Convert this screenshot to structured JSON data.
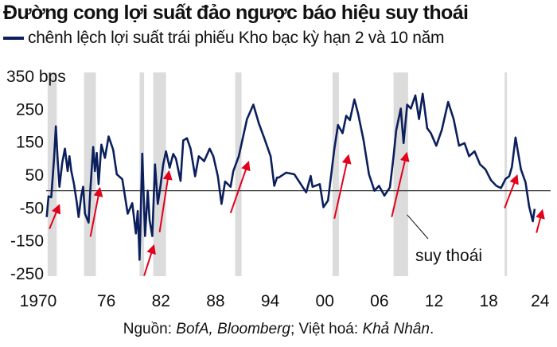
{
  "title": "Đường cong lợi suất đảo ngược báo hiệu suy thoái",
  "subtitle": "chênh lệch lợi suất trái phiếu Kho bạc kỳ hạn 2 và 10 năm",
  "source": {
    "prefix": "Nguồn: ",
    "sources_italic": "BofA, Bloomberg",
    "mid": "; Việt hoá: ",
    "translator_italic": "Khả Nhân",
    "suffix": "."
  },
  "colors": {
    "line": "#0b1f5c",
    "arrow": "#e3001b",
    "recession": "#dcdcdc",
    "zero_line": "#333333"
  },
  "chart_data": {
    "type": "line",
    "unit_label": "bps",
    "xlim": [
      1969.8,
      2024.5
    ],
    "ylim": [
      -260,
      360
    ],
    "x_ticks": [
      1970,
      1976,
      1982,
      1988,
      1994,
      2000,
      2006,
      2012,
      2018,
      2024
    ],
    "x_tick_labels": [
      "1970",
      "76",
      "82",
      "88",
      "94",
      "00",
      "06",
      "12",
      "18",
      "24"
    ],
    "y_ticks": [
      350,
      250,
      150,
      50,
      -50,
      -150,
      -250
    ],
    "y_tick_labels": [
      "350 bps",
      "250",
      "150",
      "50",
      "-50",
      "-150",
      "-250"
    ],
    "reference_line": 0,
    "grid": false,
    "series": [
      {
        "x": [
          1969.8,
          1970.0,
          1970.3,
          1970.6,
          1970.8,
          1971.0,
          1971.2,
          1971.5,
          1971.8,
          1972.1,
          1972.3,
          1972.5,
          1972.8,
          1973.1,
          1973.3,
          1973.6,
          1973.8,
          1974.0,
          1974.4,
          1974.6,
          1974.9,
          1975.1,
          1975.3,
          1975.5,
          1975.8,
          1976.2,
          1976.6,
          1977.1,
          1977.5,
          1978.1,
          1978.7,
          1979.2,
          1979.6,
          1979.8,
          1980.0,
          1980.3,
          1980.6,
          1980.9,
          1981.1,
          1981.4,
          1981.7,
          1982.0,
          1982.3,
          1982.6,
          1982.9,
          1983.3,
          1983.7,
          1984.0,
          1984.5,
          1984.8,
          1985.2,
          1985.6,
          1986.1,
          1986.5,
          1987.1,
          1987.7,
          1988.1,
          1988.6,
          1989.0,
          1989.4,
          1990.0,
          1990.3,
          1990.9,
          1991.8,
          1992.5,
          1993.1,
          1993.7,
          1994.4,
          1994.8,
          1995.1,
          1995.3,
          1996.1,
          1997.0,
          1997.9,
          1998.3,
          1998.8,
          1999.0,
          1999.8,
          2000.2,
          2000.7,
          2001.1,
          2001.4,
          2001.8,
          2002.3,
          2002.7,
          2003.1,
          2003.6,
          2004.0,
          2004.6,
          2005.2,
          2005.8,
          2006.3,
          2006.9,
          2007.5,
          2007.9,
          2008.2,
          2008.7,
          2009.0,
          2009.4,
          2009.8,
          2010.3,
          2010.7,
          2011.1,
          2011.6,
          2012.0,
          2012.6,
          2013.2,
          2013.9,
          2014.5,
          2015.1,
          2015.7,
          2016.2,
          2016.8,
          2017.4,
          2018.0,
          2018.6,
          2019.2,
          2019.7,
          2020.2,
          2020.6,
          2020.9,
          2021.3,
          2021.6,
          2021.9,
          2022.4,
          2022.8,
          2023.2,
          2023.4
        ],
        "y": [
          -80,
          -17,
          -20,
          97,
          196,
          97,
          12,
          85,
          128,
          60,
          105,
          60,
          20,
          -36,
          -80,
          -15,
          12,
          -70,
          -97,
          5,
          133,
          60,
          115,
          20,
          140,
          100,
          165,
          125,
          50,
          35,
          -70,
          -38,
          -130,
          -62,
          -210,
          113,
          -138,
          0,
          -90,
          -138,
          80,
          -40,
          15,
          80,
          120,
          70,
          112,
          97,
          30,
          153,
          160,
          128,
          44,
          105,
          90,
          128,
          105,
          44,
          -40,
          28,
          12,
          60,
          105,
          218,
          262,
          205,
          160,
          105,
          15,
          40,
          40,
          55,
          50,
          12,
          -5,
          45,
          12,
          20,
          -50,
          -30,
          60,
          128,
          200,
          175,
          228,
          215,
          278,
          235,
          155,
          50,
          0,
          15,
          -15,
          10,
          105,
          185,
          250,
          145,
          262,
          250,
          290,
          218,
          295,
          190,
          175,
          137,
          185,
          270,
          218,
          137,
          145,
          105,
          120,
          80,
          65,
          32,
          15,
          8,
          36,
          44,
          72,
          162,
          113,
          65,
          25,
          -48,
          -93,
          -55
        ]
      }
    ],
    "recessions": [
      [
        1969.9,
        1970.9
      ],
      [
        1973.9,
        1975.2
      ],
      [
        1980.0,
        1980.5
      ],
      [
        1981.5,
        1982.9
      ],
      [
        1990.5,
        1991.2
      ],
      [
        2001.2,
        2001.9
      ],
      [
        2007.9,
        2009.5
      ],
      [
        2020.1,
        2020.3
      ]
    ],
    "arrows": [
      {
        "from": [
          1970.1,
          -116
        ],
        "to": [
          1971.1,
          -49
        ]
      },
      {
        "from": [
          1974.6,
          -140
        ],
        "to": [
          1975.6,
          2
        ]
      },
      {
        "from": [
          1980.5,
          -259
        ],
        "to": [
          1981.5,
          -172
        ]
      },
      {
        "from": [
          1982.2,
          -126
        ],
        "to": [
          1983.2,
          53
        ]
      },
      {
        "from": [
          1990.0,
          -68
        ],
        "to": [
          1991.9,
          82
        ]
      },
      {
        "from": [
          2001.4,
          -85
        ],
        "to": [
          2002.9,
          102
        ]
      },
      {
        "from": [
          2007.7,
          -80
        ],
        "to": [
          2009.3,
          109
        ]
      },
      {
        "from": [
          2020.1,
          -53
        ],
        "to": [
          2021.4,
          41
        ]
      },
      {
        "from": [
          2023.6,
          -128
        ],
        "to": [
          2024.2,
          -65
        ]
      }
    ],
    "annotation": {
      "text": "suy thoái",
      "points_to": [
        2009.3,
        -73
      ]
    }
  }
}
